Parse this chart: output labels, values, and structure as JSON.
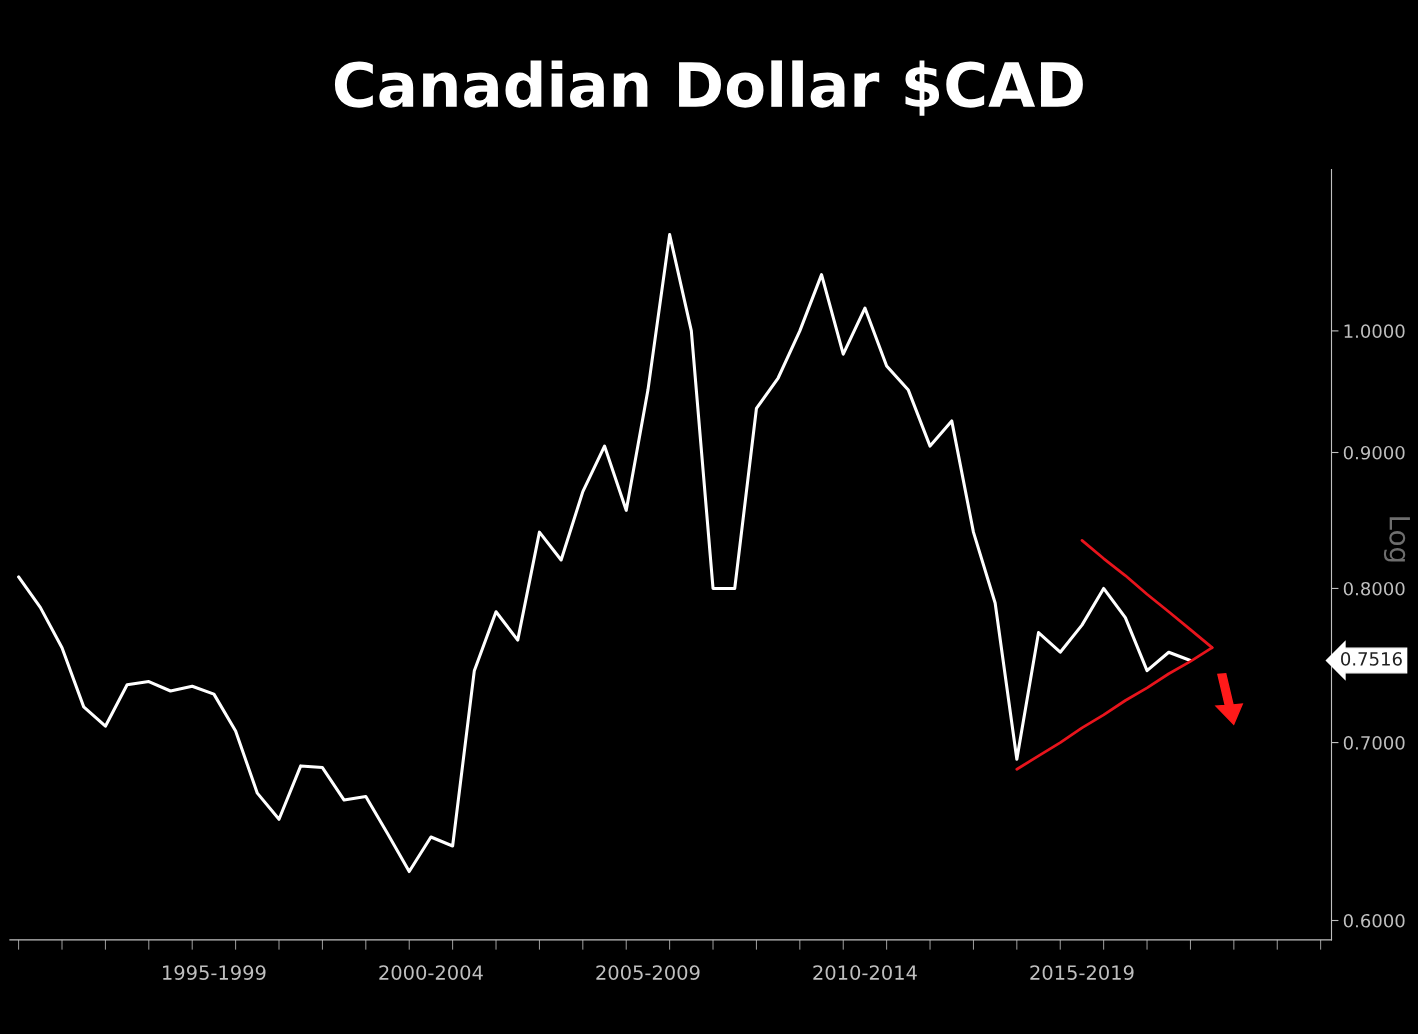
{
  "chart_data": {
    "type": "line",
    "title": "Canadian Dollar $CAD",
    "ylabel": "Log",
    "log": "y",
    "categories": [
      null,
      null,
      null,
      null,
      null,
      null,
      null,
      null,
      null,
      "1995-1999",
      null,
      null,
      null,
      null,
      null,
      null,
      null,
      null,
      null,
      "2000-2004",
      null,
      null,
      null,
      null,
      null,
      null,
      null,
      null,
      null,
      "2005-2009",
      null,
      null,
      null,
      null,
      null,
      null,
      null,
      null,
      null,
      "2010-2014",
      null,
      null,
      null,
      null,
      null,
      null,
      null,
      null,
      null,
      "2015-2019",
      null,
      null,
      null,
      null,
      null,
      null,
      null,
      null,
      null,
      null,
      null
    ],
    "ylim": [
      0.59,
      1.15
    ],
    "yticks": [
      {
        "value": 0.6,
        "label": "0.6000"
      },
      {
        "value": 0.7,
        "label": "0.7000"
      },
      {
        "value": 0.8,
        "label": "0.8000"
      },
      {
        "value": 0.9,
        "label": "0.9000"
      },
      {
        "value": 1.0,
        "label": "1.0000"
      }
    ],
    "series": [
      {
        "color": "#ffffff",
        "values": [
          0.808,
          0.787,
          0.76,
          0.722,
          0.71,
          0.736,
          0.738,
          0.732,
          0.735,
          0.73,
          0.707,
          0.67,
          0.655,
          0.686,
          0.685,
          0.666,
          0.668,
          0.647,
          0.626,
          0.645,
          0.64,
          0.745,
          0.784,
          0.765,
          0.84,
          0.82,
          0.87,
          0.905,
          0.856,
          0.95,
          1.087,
          1.0,
          0.8,
          0.8,
          0.935,
          0.96,
          1.0,
          1.05,
          0.98,
          1.02,
          0.97,
          0.95,
          0.905,
          0.925,
          0.84,
          0.79,
          0.69,
          0.77,
          0.757,
          0.775,
          0.8,
          0.78,
          0.745,
          0.757,
          0.7516,
          null,
          null,
          null,
          null,
          null,
          null
        ]
      },
      {
        "color": "#e8141c",
        "values": [
          null,
          null,
          null,
          null,
          null,
          null,
          null,
          null,
          null,
          null,
          null,
          null,
          null,
          null,
          null,
          null,
          null,
          null,
          null,
          null,
          null,
          null,
          null,
          null,
          null,
          null,
          null,
          null,
          null,
          null,
          null,
          null,
          null,
          null,
          null,
          null,
          null,
          null,
          null,
          null,
          null,
          null,
          null,
          null,
          null,
          null,
          null,
          null,
          null,
          0.834,
          0.821,
          0.809,
          0.796,
          0.784,
          0.772,
          0.76,
          null,
          null,
          null,
          null,
          null
        ]
      },
      {
        "color": "#e8141c",
        "values": [
          null,
          null,
          null,
          null,
          null,
          null,
          null,
          null,
          null,
          null,
          null,
          null,
          null,
          null,
          null,
          null,
          null,
          null,
          null,
          null,
          null,
          null,
          null,
          null,
          null,
          null,
          null,
          null,
          null,
          null,
          null,
          null,
          null,
          null,
          null,
          null,
          null,
          null,
          null,
          null,
          null,
          null,
          null,
          null,
          null,
          null,
          0.684,
          0.692,
          0.7,
          0.709,
          0.717,
          0.726,
          0.734,
          0.743,
          0.751,
          0.76,
          null,
          null,
          null,
          null,
          null
        ]
      }
    ],
    "annotations": [
      "0.7516"
    ]
  }
}
